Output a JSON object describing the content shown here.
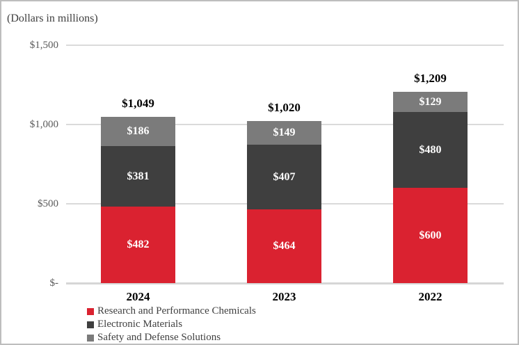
{
  "chart_data": {
    "type": "bar",
    "variant": "stacked",
    "title": "(Dollars in millions)",
    "categories": [
      "2024",
      "2023",
      "2022"
    ],
    "series": [
      {
        "name": "Research and Performance Chemicals",
        "color": "#da2230",
        "values": [
          482,
          464,
          600
        ],
        "value_labels": [
          "$482",
          "$464",
          "$600"
        ]
      },
      {
        "name": "Electronic Materials",
        "color": "#3f3f3f",
        "values": [
          381,
          407,
          480
        ],
        "value_labels": [
          "$381",
          "$407",
          "$480"
        ]
      },
      {
        "name": "Safety and Defense Solutions",
        "color": "#7b7b7b",
        "values": [
          186,
          149,
          129
        ],
        "value_labels": [
          "$186",
          "$149",
          "$129"
        ]
      }
    ],
    "totals": [
      1049,
      1020,
      1209
    ],
    "total_labels": [
      "$1,049",
      "$1,020",
      "$1,209"
    ],
    "y_axis": {
      "min": 0,
      "max": 1500,
      "ticks": [
        {
          "value": 1500,
          "label": "$1,500"
        },
        {
          "value": 1000,
          "label": "$1,000"
        },
        {
          "value": 500,
          "label": "$500"
        },
        {
          "value": 0,
          "label": "$-"
        }
      ]
    },
    "grid": true,
    "legend_position": "bottom-left",
    "colors": {
      "grid": "#dadada",
      "axis_text": "#595959",
      "label_text": "#000000",
      "segment_text": "#ffffff",
      "frame_border": "#bdbdbd"
    }
  }
}
